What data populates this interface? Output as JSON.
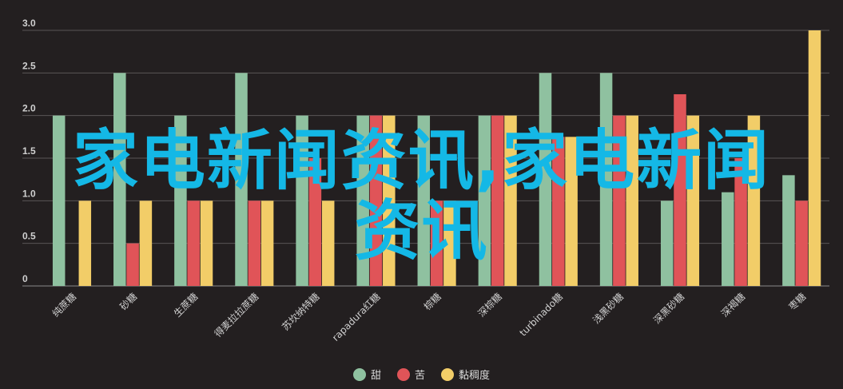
{
  "chart_data": {
    "type": "bar",
    "categories": [
      "纯蔗糖",
      "砂糖",
      "生蔗糖",
      "得麦拉拉蔗糖",
      "苏坎纳特糖",
      "rapadura红糖",
      "棕糖",
      "深棕糖",
      "turbinado糖",
      "浅黑砂糖",
      "深黑砂糖",
      "深褐糖",
      "枣糖"
    ],
    "series": [
      {
        "name": "甜",
        "color": "#8fc1a0",
        "values": [
          2.0,
          2.5,
          2.0,
          2.5,
          2.0,
          2.0,
          2.0,
          2.0,
          2.5,
          2.5,
          1.0,
          1.1,
          1.3
        ]
      },
      {
        "name": "苦",
        "color": "#e05458",
        "values": [
          0.0,
          0.5,
          1.0,
          1.0,
          1.5,
          2.0,
          1.0,
          2.0,
          1.75,
          2.0,
          2.25,
          1.5,
          1.0
        ]
      },
      {
        "name": "黏稠度",
        "color": "#f2cd68",
        "values": [
          1.0,
          1.0,
          1.0,
          1.0,
          1.0,
          2.0,
          1.0,
          2.0,
          1.75,
          2.0,
          2.0,
          2.0,
          3.0
        ]
      }
    ],
    "yticks": [
      "0",
      "0.5",
      "1.0",
      "1.5",
      "2.0",
      "2.5",
      "3.0"
    ],
    "ylim": [
      0,
      3
    ],
    "grid": true,
    "legend_position": "bottom-center"
  },
  "overlay": {
    "line1": "家电新闻资讯,家电新闻",
    "line2": "资讯"
  }
}
